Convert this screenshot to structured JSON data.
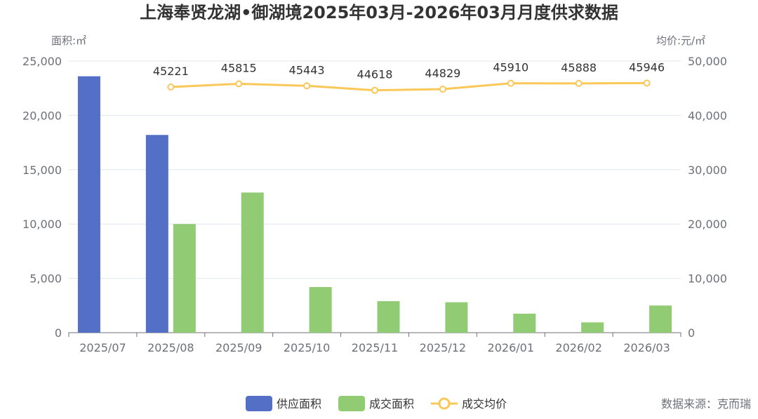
{
  "chart_data": {
    "type": "bar",
    "title": "上海奉贤龙湖•御湖境2025年03月-2026年03月月度供求数据",
    "y_left_label": "面积:㎡",
    "y_right_label": "均价:元/㎡",
    "categories": [
      "2025/07",
      "2025/08",
      "2025/09",
      "2025/10",
      "2025/11",
      "2025/12",
      "2026/01",
      "2026/02",
      "2026/03"
    ],
    "y_left_lim": [
      0,
      25000
    ],
    "y_left_ticks": [
      "0",
      "5,000",
      "10,000",
      "15,000",
      "20,000",
      "25,000"
    ],
    "y_right_lim": [
      0,
      50000
    ],
    "y_right_ticks": [
      "0",
      "10,000",
      "20,000",
      "30,000",
      "40,000",
      "50,000"
    ],
    "grid": true,
    "legend_position": "bottom-center",
    "series": [
      {
        "name": "供应面积",
        "type": "bar",
        "axis": "left",
        "color": "#5470c6",
        "values": [
          23600,
          18200,
          null,
          null,
          null,
          null,
          null,
          null,
          null
        ]
      },
      {
        "name": "成交面积",
        "type": "bar",
        "axis": "left",
        "color": "#91cc75",
        "values": [
          null,
          10000,
          12900,
          4200,
          2900,
          2800,
          1750,
          950,
          2500
        ]
      },
      {
        "name": "成交均价",
        "type": "line",
        "axis": "right",
        "color": "#fac858",
        "values": [
          null,
          45221,
          45815,
          45443,
          44618,
          44829,
          45910,
          45888,
          45946
        ],
        "labels": [
          null,
          "45221",
          "45815",
          "45443",
          "44618",
          "44829",
          "45910",
          "45888",
          "45946"
        ]
      }
    ]
  },
  "source": "数据来源：克而瑞"
}
